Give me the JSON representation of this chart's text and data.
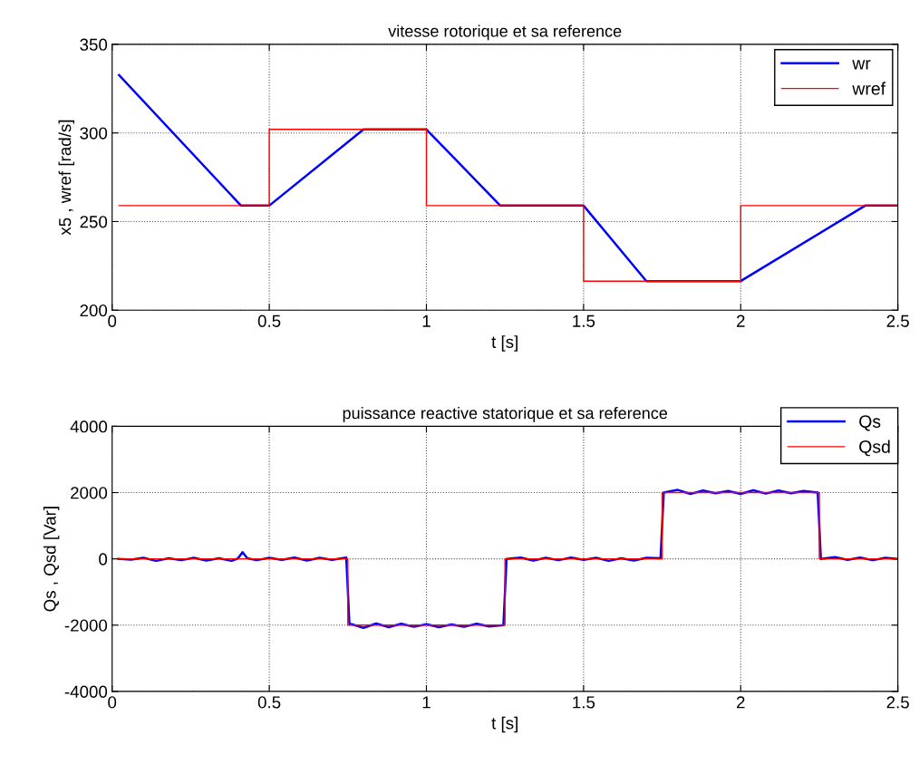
{
  "chart_data": [
    {
      "type": "line",
      "title": "vitesse rotorique et sa reference",
      "xlabel": "t [s]",
      "ylabel": "x5 , wref [rad/s]",
      "xlim": [
        0,
        2.5
      ],
      "xticks": [
        0,
        0.5,
        1,
        1.5,
        2,
        2.5
      ],
      "ylim": [
        200,
        350
      ],
      "yticks": [
        200,
        250,
        300,
        350
      ],
      "grid": true,
      "legend": "top right",
      "series": [
        {
          "name": "wr",
          "color": "#0000ff",
          "x": [
            0.022,
            0.41,
            0.5,
            0.8,
            1.0,
            1.235,
            1.5,
            1.7,
            2.0,
            2.396,
            2.5
          ],
          "values": [
            332.6,
            259,
            259,
            302,
            302,
            259,
            259,
            216.4,
            216.4,
            259,
            259
          ]
        },
        {
          "name": "wref",
          "color": "#ff0000",
          "x": [
            0.022,
            0.5,
            0.5,
            1.0,
            1.0,
            1.5,
            1.5,
            2.0,
            2.0,
            2.5
          ],
          "values": [
            259,
            259,
            302,
            302,
            259,
            259,
            216.4,
            216.4,
            259,
            259
          ]
        }
      ]
    },
    {
      "type": "line",
      "title": "puissance reactive statorique et sa reference",
      "xlabel": "t [s]",
      "ylabel": "Qs , Qsd [Var]",
      "xlim": [
        0,
        2.5
      ],
      "xticks": [
        0,
        0.5,
        1,
        1.5,
        2,
        2.5
      ],
      "ylim": [
        -4000,
        4000
      ],
      "yticks": [
        -4000,
        -2000,
        0,
        2000,
        4000
      ],
      "grid": true,
      "legend": "top right",
      "series": [
        {
          "name": "Qs",
          "color": "#0000ff",
          "x": [
            0.02,
            0.06,
            0.1,
            0.14,
            0.18,
            0.22,
            0.26,
            0.3,
            0.34,
            0.38,
            0.4,
            0.415,
            0.43,
            0.46,
            0.5,
            0.54,
            0.58,
            0.62,
            0.66,
            0.7,
            0.745,
            0.755,
            0.8,
            0.84,
            0.88,
            0.92,
            0.96,
            1.0,
            1.04,
            1.08,
            1.12,
            1.16,
            1.2,
            1.245,
            1.255,
            1.3,
            1.34,
            1.38,
            1.42,
            1.46,
            1.5,
            1.54,
            1.58,
            1.62,
            1.66,
            1.7,
            1.745,
            1.755,
            1.8,
            1.84,
            1.88,
            1.92,
            1.96,
            2.0,
            2.04,
            2.08,
            2.12,
            2.16,
            2.2,
            2.245,
            2.255,
            2.3,
            2.34,
            2.38,
            2.42,
            2.46,
            2.5
          ],
          "values": [
            0,
            -20,
            30,
            -60,
            20,
            -40,
            30,
            -50,
            20,
            -60,
            10,
            200,
            20,
            -40,
            30,
            -30,
            40,
            -50,
            30,
            -30,
            40,
            -1950,
            -2080,
            -1950,
            -2060,
            -1960,
            -2050,
            -1970,
            -2060,
            -1980,
            -2050,
            -1960,
            -2040,
            -2000,
            0,
            40,
            -50,
            30,
            -40,
            40,
            -30,
            30,
            -60,
            20,
            -50,
            30,
            20,
            2000,
            2080,
            1960,
            2060,
            1980,
            2050,
            1960,
            2070,
            1970,
            2060,
            1980,
            2050,
            2000,
            0,
            50,
            -30,
            40,
            -40,
            30,
            0
          ]
        },
        {
          "name": "Qsd",
          "color": "#ff0000",
          "x": [
            0.02,
            0.75,
            0.75,
            1.25,
            1.25,
            1.75,
            1.75,
            2.25,
            2.25,
            2.5
          ],
          "values": [
            0,
            0,
            -2000,
            -2000,
            0,
            0,
            2000,
            2000,
            0,
            0
          ]
        }
      ]
    }
  ]
}
